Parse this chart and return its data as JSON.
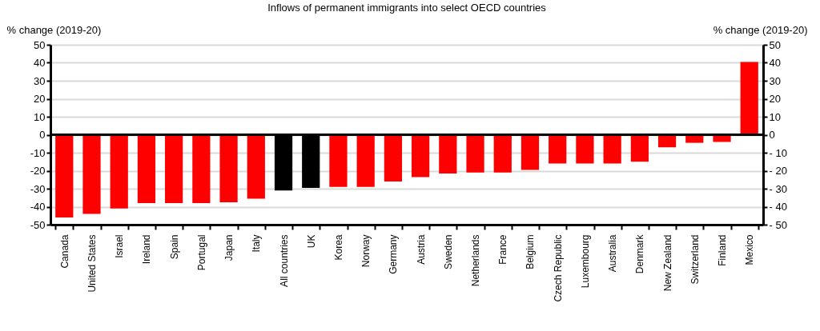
{
  "chart_data": {
    "type": "bar",
    "title": "Inflows of permanent immigrants  into select OECD countries",
    "ylabel": "% change (2019-20)",
    "y2label": "% change (2019-20)",
    "categories": [
      "Canada",
      "United States",
      "Israel",
      "Ireland",
      "Spain",
      "Portugal",
      "Japan",
      "Italy",
      "All countries",
      "UK",
      "Korea",
      "Norway",
      "Germany",
      "Austria",
      "Sweden",
      "Netherlands",
      "France",
      "Belgium",
      "Czech Republic",
      "Luxembourg",
      "Australia",
      "Denmark",
      "New Zealand",
      "Switzerland",
      "Finland",
      "Mexico"
    ],
    "values": [
      -46,
      -44,
      -41,
      -38,
      -38,
      -38,
      -37.5,
      -35.5,
      -31,
      -29.5,
      -29,
      -29,
      -26,
      -23.5,
      -21.5,
      -21,
      -21,
      -19.5,
      -16,
      -16,
      -16,
      -15,
      -7,
      -4.5,
      -4,
      40.5
    ],
    "colors": [
      "#ff0000",
      "#ff0000",
      "#ff0000",
      "#ff0000",
      "#ff0000",
      "#ff0000",
      "#ff0000",
      "#ff0000",
      "#000000",
      "#000000",
      "#ff0000",
      "#ff0000",
      "#ff0000",
      "#ff0000",
      "#ff0000",
      "#ff0000",
      "#ff0000",
      "#ff0000",
      "#ff0000",
      "#ff0000",
      "#ff0000",
      "#ff0000",
      "#ff0000",
      "#ff0000",
      "#ff0000",
      "#ff0000"
    ],
    "ylim": [
      -50,
      50
    ],
    "yticks": [
      -50,
      -40,
      -30,
      -20,
      -10,
      0,
      10,
      20,
      30,
      40,
      50
    ],
    "y2lim": [
      -50,
      50
    ],
    "y2ticks": [
      {
        "value": -50,
        "label": "- 50"
      },
      {
        "value": -40,
        "label": "- 40"
      },
      {
        "value": -30,
        "label": "- 30"
      },
      {
        "value": -20,
        "label": "- 20"
      },
      {
        "value": -10,
        "label": "- 10"
      },
      0,
      10,
      20,
      30,
      40,
      50
    ],
    "grid": "y"
  }
}
